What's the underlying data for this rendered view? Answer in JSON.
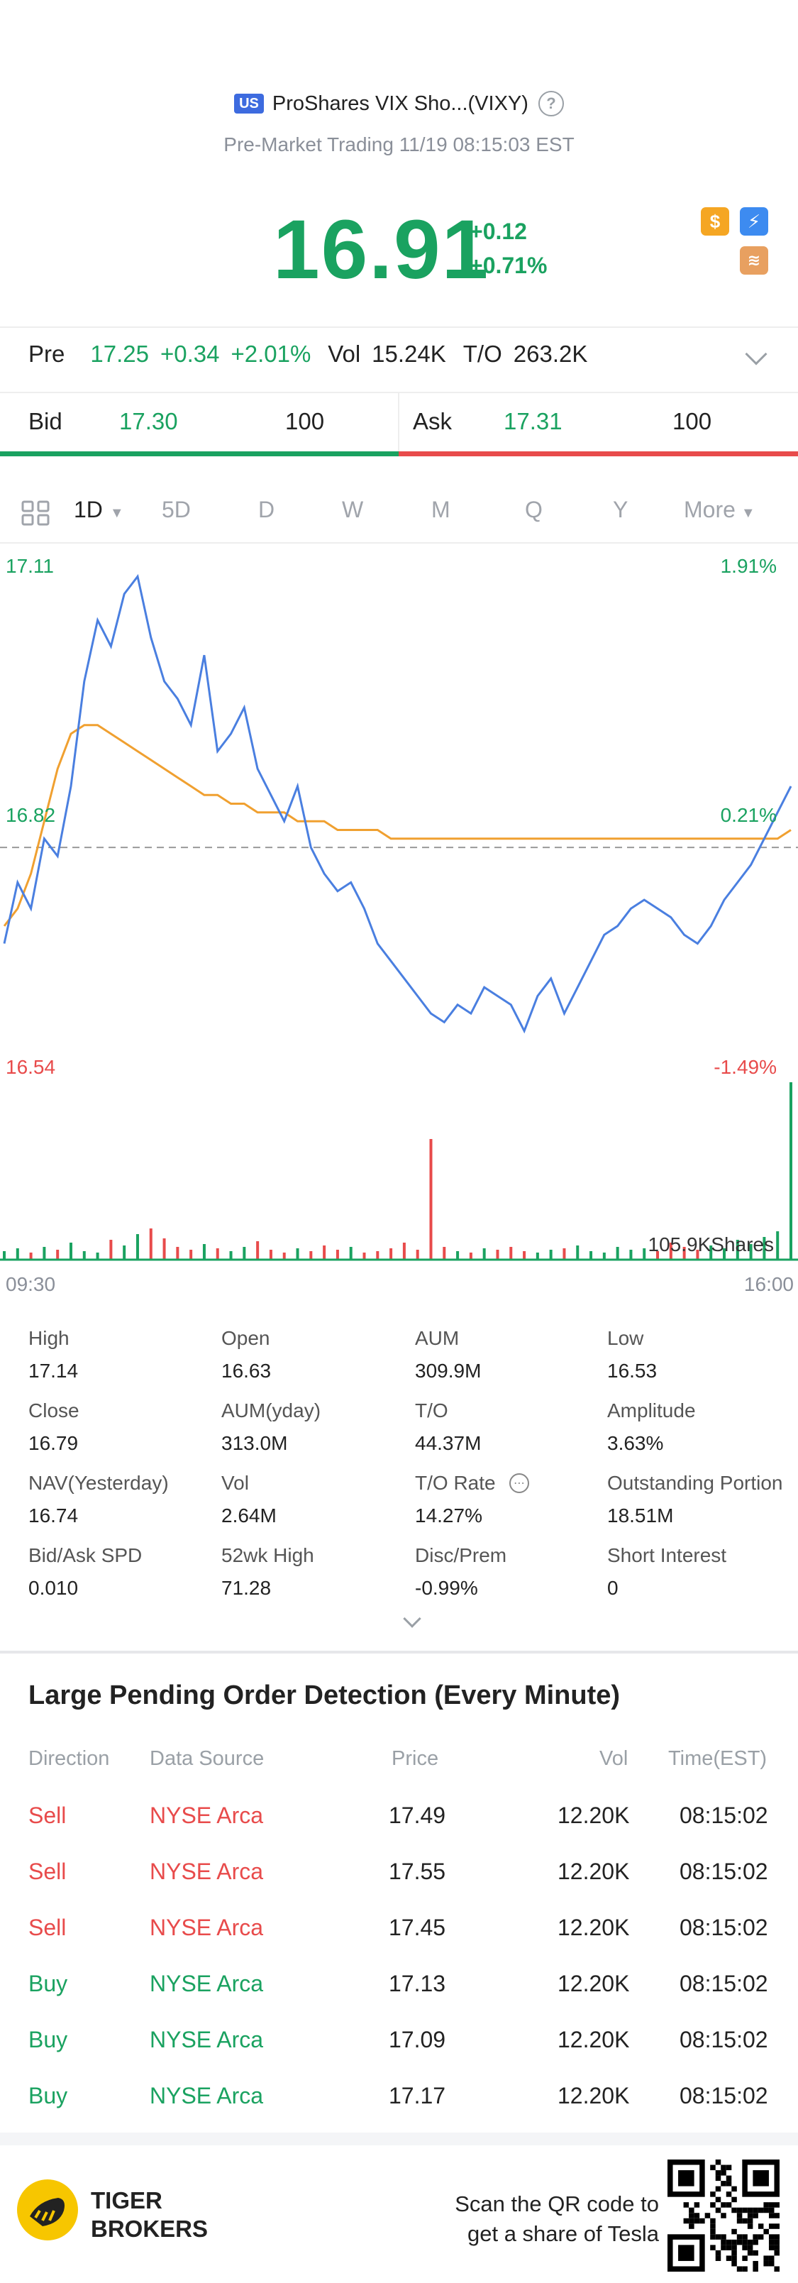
{
  "header": {
    "market_badge": "US",
    "title": "ProShares VIX Sho...(VIXY)",
    "subtitle": "Pre-Market Trading 11/19 08:15:03 EST",
    "price": "16.91",
    "change": "+0.12",
    "change_pct": "+0.71%"
  },
  "premarket": {
    "label": "Pre",
    "price": "17.25",
    "change": "+0.34",
    "change_pct": "+2.01%",
    "vol_label": "Vol",
    "vol": "15.24K",
    "to_label": "T/O",
    "to": "263.2K"
  },
  "quote": {
    "bid_label": "Bid",
    "bid_price": "17.30",
    "bid_size": "100",
    "ask_label": "Ask",
    "ask_price": "17.31",
    "ask_size": "100"
  },
  "tabs": [
    "1D",
    "5D",
    "D",
    "W",
    "M",
    "Q",
    "Y",
    "More"
  ],
  "chart_labels": {
    "y_high": "17.11",
    "y_high_pct": "1.91%",
    "y_mid": "16.82",
    "y_mid_pct": "0.21%",
    "y_low": "16.54",
    "y_low_pct": "-1.49%",
    "volume": "105.9KShares",
    "x_start": "09:30",
    "x_end": "16:00"
  },
  "chart_data": {
    "type": "line",
    "x_range": [
      "09:30",
      "16:00"
    ],
    "ylim": [
      16.54,
      17.11
    ],
    "prev_close": 16.79,
    "series": [
      {
        "values": [
          16.68,
          16.75,
          16.72,
          16.8,
          16.78,
          16.86,
          16.98,
          17.05,
          17.02,
          17.08,
          17.1,
          17.03,
          16.98,
          16.96,
          16.93,
          17.01,
          16.9,
          16.92,
          16.95,
          16.88,
          16.85,
          16.82,
          16.86,
          16.79,
          16.76,
          16.74,
          16.75,
          16.72,
          16.68,
          16.66,
          16.64,
          16.62,
          16.6,
          16.59,
          16.61,
          16.6,
          16.63,
          16.62,
          16.61,
          16.58,
          16.62,
          16.64,
          16.6,
          16.63,
          16.66,
          16.69,
          16.7,
          16.72,
          16.73,
          16.72,
          16.71,
          16.69,
          16.68,
          16.7,
          16.73,
          16.75,
          16.77,
          16.8,
          16.83,
          16.86
        ]
      },
      {
        "values": [
          16.7,
          16.72,
          16.76,
          16.82,
          16.88,
          16.92,
          16.93,
          16.93,
          16.92,
          16.91,
          16.9,
          16.89,
          16.88,
          16.87,
          16.86,
          16.85,
          16.85,
          16.84,
          16.84,
          16.83,
          16.83,
          16.83,
          16.82,
          16.82,
          16.82,
          16.81,
          16.81,
          16.81,
          16.81,
          16.8,
          16.8,
          16.8,
          16.8,
          16.8,
          16.8,
          16.8,
          16.8,
          16.8,
          16.8,
          16.8,
          16.8,
          16.8,
          16.8,
          16.8,
          16.8,
          16.8,
          16.8,
          16.8,
          16.8,
          16.8,
          16.8,
          16.8,
          16.8,
          16.8,
          16.8,
          16.8,
          16.8,
          16.8,
          16.8,
          16.81
        ]
      }
    ],
    "volume": [
      6,
      8,
      5,
      9,
      7,
      12,
      6,
      5,
      14,
      10,
      18,
      22,
      15,
      9,
      7,
      11,
      8,
      6,
      9,
      13,
      7,
      5,
      8,
      6,
      10,
      7,
      9,
      5,
      6,
      8,
      12,
      7,
      85,
      9,
      6,
      5,
      8,
      7,
      9,
      6,
      5,
      7,
      8,
      10,
      6,
      5,
      9,
      7,
      8,
      6,
      12,
      9,
      7,
      10,
      8,
      14,
      11,
      16,
      20,
      125
    ]
  },
  "stats": [
    {
      "label": "High",
      "value": "17.14"
    },
    {
      "label": "Open",
      "value": "16.63"
    },
    {
      "label": "AUM",
      "value": "309.9M"
    },
    {
      "label": "Low",
      "value": "16.53"
    },
    {
      "label": "Close",
      "value": "16.79"
    },
    {
      "label": "AUM(yday)",
      "value": "313.0M"
    },
    {
      "label": "T/O",
      "value": "44.37M"
    },
    {
      "label": "Amplitude",
      "value": "3.63%"
    },
    {
      "label": "NAV(Yesterday)",
      "value": "16.74"
    },
    {
      "label": "Vol",
      "value": "2.64M"
    },
    {
      "label": "T/O Rate",
      "value": "14.27%"
    },
    {
      "label": "Outstanding Portion",
      "value": "18.51M"
    },
    {
      "label": "Bid/Ask SPD",
      "value": "0.010"
    },
    {
      "label": "52wk High",
      "value": "71.28"
    },
    {
      "label": "Disc/Prem",
      "value": "-0.99%"
    },
    {
      "label": "Short Interest",
      "value": "0"
    }
  ],
  "orders": {
    "title": "Large Pending Order Detection (Every Minute)",
    "headers": [
      "Direction",
      "Data Source",
      "Price",
      "Vol",
      "Time(EST)"
    ],
    "rows": [
      {
        "direction": "Sell",
        "source": "NYSE Arca",
        "price": "17.49",
        "vol": "12.20K",
        "time": "08:15:02"
      },
      {
        "direction": "Sell",
        "source": "NYSE Arca",
        "price": "17.55",
        "vol": "12.20K",
        "time": "08:15:02"
      },
      {
        "direction": "Sell",
        "source": "NYSE Arca",
        "price": "17.45",
        "vol": "12.20K",
        "time": "08:15:02"
      },
      {
        "direction": "Buy",
        "source": "NYSE Arca",
        "price": "17.13",
        "vol": "12.20K",
        "time": "08:15:02"
      },
      {
        "direction": "Buy",
        "source": "NYSE Arca",
        "price": "17.09",
        "vol": "12.20K",
        "time": "08:15:02"
      },
      {
        "direction": "Buy",
        "source": "NYSE Arca",
        "price": "17.17",
        "vol": "12.20K",
        "time": "08:15:02"
      }
    ]
  },
  "footer": {
    "brand_line1": "TIGER",
    "brand_line2": "BROKERS",
    "promo_line1": "Scan the QR code to",
    "promo_line2": "get a share of Tesla"
  },
  "colors": {
    "up": "#1aa260",
    "down": "#e84b4b",
    "price_line": "#4a7fe0",
    "avg_line": "#f0a030"
  }
}
